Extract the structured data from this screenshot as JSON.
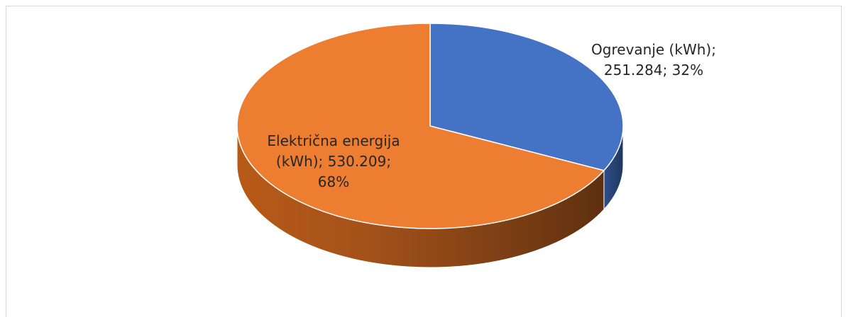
{
  "chart_data": {
    "type": "pie",
    "style": "3d",
    "title": "",
    "series": [
      {
        "categories": [
          "Ogrevanje (kWh)",
          "Električna energija (kWh)"
        ],
        "values": [
          251.284,
          530.209
        ],
        "percents": [
          32,
          68
        ],
        "colors": [
          "#4472c4",
          "#ed7d31"
        ]
      }
    ],
    "legend": "none"
  },
  "labels": {
    "ogrevanje": [
      "Ogrevanje (kWh);",
      "251.284; 32%"
    ],
    "elektricna": [
      "Električna energija",
      "(kWh); 530.209;",
      "68%"
    ]
  }
}
